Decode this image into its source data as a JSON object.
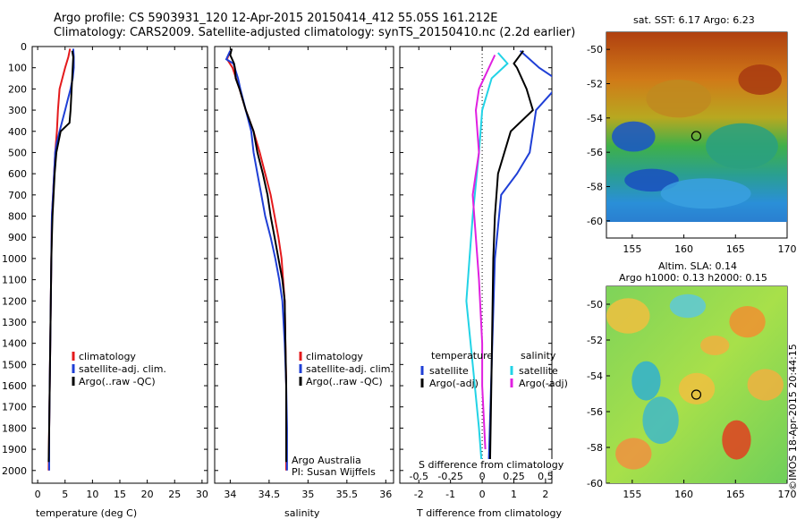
{
  "title_line1": "Argo profile: CS 5903931_120 12-Apr-2015 20150414_412 55.05S 161.212E",
  "title_line2": "Climatology: CARS2009. Satellite-adjusted climatology: synTS_20150410.nc (2.2d earlier)",
  "side_label": "©IMOS 18-Apr-2015 20:44:15",
  "colors": {
    "climatology": "#e41a1c",
    "satellite": "#1f3fd6",
    "argo": "#000000",
    "salinity_satellite": "#22d3e6",
    "salinity_argo": "#e020e0"
  },
  "chart_data": [
    {
      "type": "line",
      "panel": "temperature",
      "xlabel": "temperature (deg C)",
      "xlim": [
        -1,
        31
      ],
      "xticks": [
        0,
        5,
        10,
        15,
        20,
        25,
        30
      ],
      "ylim": [
        2060,
        0
      ],
      "yticks": [
        0,
        100,
        200,
        300,
        400,
        500,
        600,
        700,
        800,
        900,
        1000,
        1100,
        1200,
        1300,
        1400,
        1500,
        1600,
        1700,
        1800,
        1900,
        2000
      ],
      "legend": [
        "climatology",
        "satellite-adj. clim.",
        "Argo(..raw -QC)"
      ],
      "legend_position": "lower-right",
      "series": [
        {
          "name": "climatology",
          "color": "climatology",
          "points": [
            [
              5.9,
              10
            ],
            [
              5.6,
              50
            ],
            [
              5.0,
              100
            ],
            [
              4.5,
              150
            ],
            [
              4.0,
              200
            ],
            [
              3.7,
              300
            ],
            [
              3.5,
              400
            ],
            [
              3.2,
              500
            ],
            [
              3.0,
              600
            ],
            [
              2.8,
              700
            ],
            [
              2.6,
              800
            ],
            [
              2.5,
              1000
            ],
            [
              2.4,
              1200
            ],
            [
              2.3,
              1400
            ],
            [
              2.2,
              1600
            ],
            [
              2.1,
              1800
            ],
            [
              2.0,
              2000
            ]
          ]
        },
        {
          "name": "satellite-adj. clim.",
          "color": "satellite",
          "points": [
            [
              6.5,
              10
            ],
            [
              6.6,
              50
            ],
            [
              6.6,
              100
            ],
            [
              6.4,
              150
            ],
            [
              6.0,
              200
            ],
            [
              5.5,
              250
            ],
            [
              5.0,
              300
            ],
            [
              4.5,
              350
            ],
            [
              4.0,
              400
            ],
            [
              3.5,
              450
            ],
            [
              3.2,
              500
            ],
            [
              3.0,
              600
            ],
            [
              2.8,
              700
            ],
            [
              2.6,
              800
            ],
            [
              2.5,
              1000
            ],
            [
              2.4,
              1200
            ],
            [
              2.3,
              1400
            ],
            [
              2.2,
              1600
            ],
            [
              2.1,
              1800
            ],
            [
              2.1,
              2000
            ]
          ]
        },
        {
          "name": "Argo(..raw -QC)",
          "color": "argo",
          "points": [
            [
              6.3,
              20
            ],
            [
              6.5,
              50
            ],
            [
              6.4,
              100
            ],
            [
              6.2,
              200
            ],
            [
              6.0,
              300
            ],
            [
              5.8,
              360
            ],
            [
              4.2,
              400
            ],
            [
              3.8,
              450
            ],
            [
              3.4,
              500
            ],
            [
              3.1,
              600
            ],
            [
              2.9,
              700
            ],
            [
              2.7,
              800
            ],
            [
              2.6,
              900
            ],
            [
              2.5,
              1000
            ],
            [
              2.4,
              1200
            ],
            [
              2.3,
              1400
            ],
            [
              2.2,
              1600
            ],
            [
              2.1,
              1800
            ],
            [
              2.0,
              1960
            ]
          ]
        }
      ]
    },
    {
      "type": "line",
      "panel": "salinity",
      "xlabel": "salinity",
      "xlim": [
        33.8,
        36.1
      ],
      "xticks": [
        34,
        34.5,
        35,
        35.5,
        36
      ],
      "ylim": [
        2060,
        0
      ],
      "legend": [
        "climatology",
        "satellite-adj. clim.",
        "Argo(..raw -QC)"
      ],
      "legend_position": "lower-right",
      "annotation": [
        "Argo Australia",
        "PI: Susan Wijffels"
      ],
      "series": [
        {
          "name": "climatology",
          "color": "climatology",
          "points": [
            [
              34.0,
              20
            ],
            [
              33.96,
              60
            ],
            [
              34.03,
              100
            ],
            [
              34.12,
              200
            ],
            [
              34.2,
              300
            ],
            [
              34.3,
              400
            ],
            [
              34.38,
              500
            ],
            [
              34.45,
              600
            ],
            [
              34.52,
              700
            ],
            [
              34.57,
              800
            ],
            [
              34.62,
              900
            ],
            [
              34.66,
              1000
            ],
            [
              34.68,
              1100
            ],
            [
              34.7,
              1200
            ],
            [
              34.71,
              1400
            ],
            [
              34.72,
              1600
            ],
            [
              34.72,
              1800
            ],
            [
              34.72,
              2000
            ]
          ]
        },
        {
          "name": "satellite-adj. clim.",
          "color": "satellite",
          "points": [
            [
              34.0,
              20
            ],
            [
              33.95,
              60
            ],
            [
              34.04,
              80
            ],
            [
              34.1,
              150
            ],
            [
              34.13,
              200
            ],
            [
              34.2,
              300
            ],
            [
              34.27,
              400
            ],
            [
              34.3,
              500
            ],
            [
              34.35,
              600
            ],
            [
              34.4,
              700
            ],
            [
              34.45,
              800
            ],
            [
              34.52,
              900
            ],
            [
              34.58,
              1000
            ],
            [
              34.63,
              1100
            ],
            [
              34.67,
              1200
            ],
            [
              34.7,
              1400
            ],
            [
              34.72,
              1600
            ],
            [
              34.73,
              1800
            ],
            [
              34.73,
              2000
            ]
          ]
        },
        {
          "name": "Argo(..raw -QC)",
          "color": "argo",
          "points": [
            [
              34.02,
              10
            ],
            [
              34.0,
              40
            ],
            [
              34.05,
              80
            ],
            [
              34.06,
              100
            ],
            [
              34.07,
              150
            ],
            [
              34.12,
              200
            ],
            [
              34.2,
              300
            ],
            [
              34.3,
              400
            ],
            [
              34.35,
              500
            ],
            [
              34.42,
              600
            ],
            [
              34.48,
              700
            ],
            [
              34.52,
              800
            ],
            [
              34.57,
              900
            ],
            [
              34.62,
              1000
            ],
            [
              34.67,
              1100
            ],
            [
              34.7,
              1200
            ],
            [
              34.71,
              1400
            ],
            [
              34.72,
              1600
            ],
            [
              34.72,
              1800
            ],
            [
              34.72,
              1960
            ]
          ]
        }
      ]
    },
    {
      "type": "line",
      "panel": "difference",
      "xlabel": "T difference from climatology",
      "xlim": [
        -2.6,
        2.2
      ],
      "xticks": [
        -2,
        -1,
        0,
        1,
        2
      ],
      "top_axis_label": "S difference from climatology",
      "top_ticks": [
        "-0.5",
        "-0.25",
        "0",
        "0.25",
        "0.5"
      ],
      "ylim": [
        2060,
        0
      ],
      "legend_groups": [
        {
          "heading": "temperature",
          "items": [
            "satellite",
            "Argo(-adj)"
          ]
        },
        {
          "heading": "salinity",
          "items": [
            "satellite",
            "Argo(-adj)"
          ]
        }
      ],
      "series": [
        {
          "name": "temperature satellite",
          "color": "satellite",
          "points": [
            [
              1.2,
              20
            ],
            [
              1.5,
              60
            ],
            [
              1.8,
              100
            ],
            [
              2.3,
              150
            ],
            [
              2.3,
              200
            ],
            [
              1.7,
              300
            ],
            [
              1.6,
              400
            ],
            [
              1.5,
              500
            ],
            [
              1.1,
              600
            ],
            [
              0.6,
              700
            ],
            [
              0.4,
              1000
            ],
            [
              0.3,
              1500
            ],
            [
              0.2,
              2000
            ]
          ]
        },
        {
          "name": "temperature Argo(-adj)",
          "color": "argo",
          "points": [
            [
              1.3,
              20
            ],
            [
              1.0,
              80
            ],
            [
              1.1,
              100
            ],
            [
              1.4,
              200
            ],
            [
              1.6,
              300
            ],
            [
              0.9,
              400
            ],
            [
              0.7,
              500
            ],
            [
              0.5,
              600
            ],
            [
              0.4,
              800
            ],
            [
              0.35,
              1000
            ],
            [
              0.3,
              1500
            ],
            [
              0.25,
              1960
            ]
          ]
        },
        {
          "name": "salinity satellite",
          "color": "salinity_satellite",
          "points": [
            [
              0.5,
              30
            ],
            [
              0.8,
              80
            ],
            [
              0.3,
              150
            ],
            [
              0.0,
              300
            ],
            [
              -0.1,
              500
            ],
            [
              -0.3,
              800
            ],
            [
              -0.4,
              1000
            ],
            [
              -0.5,
              1200
            ],
            [
              -0.3,
              1500
            ],
            [
              -0.1,
              1800
            ],
            [
              0.0,
              2000
            ]
          ]
        },
        {
          "name": "salinity Argo(-adj)",
          "color": "salinity_argo",
          "points": [
            [
              0.4,
              40
            ],
            [
              -0.1,
              200
            ],
            [
              -0.2,
              300
            ],
            [
              -0.1,
              500
            ],
            [
              -0.3,
              700
            ],
            [
              -0.2,
              900
            ],
            [
              -0.1,
              1100
            ],
            [
              0.0,
              1400
            ],
            [
              0.0,
              1600
            ],
            [
              0.1,
              1900
            ]
          ]
        }
      ]
    },
    {
      "type": "heatmap",
      "panel": "sst_map",
      "title": "sat. SST: 6.17  Argo: 6.23",
      "xlim": [
        152.5,
        170
      ],
      "ylim": [
        -61,
        -49
      ],
      "xticks": [
        155,
        160,
        165,
        170
      ],
      "yticks": [
        -50,
        -52,
        -54,
        -56,
        -58,
        -60
      ],
      "marker": {
        "lon": 161.2,
        "lat": -55.05
      }
    },
    {
      "type": "heatmap",
      "panel": "sla_map",
      "title_line1": "Altim. SLA: 0.14",
      "title_line2": "Argo h1000: 0.13 h2000: 0.15",
      "xlim": [
        152.5,
        170
      ],
      "ylim": [
        -60,
        -49
      ],
      "xticks": [
        155,
        160,
        165,
        170
      ],
      "yticks": [
        -50,
        -52,
        -54,
        -56,
        -58,
        -60
      ],
      "marker": {
        "lon": 161.2,
        "lat": -55.05
      }
    }
  ]
}
